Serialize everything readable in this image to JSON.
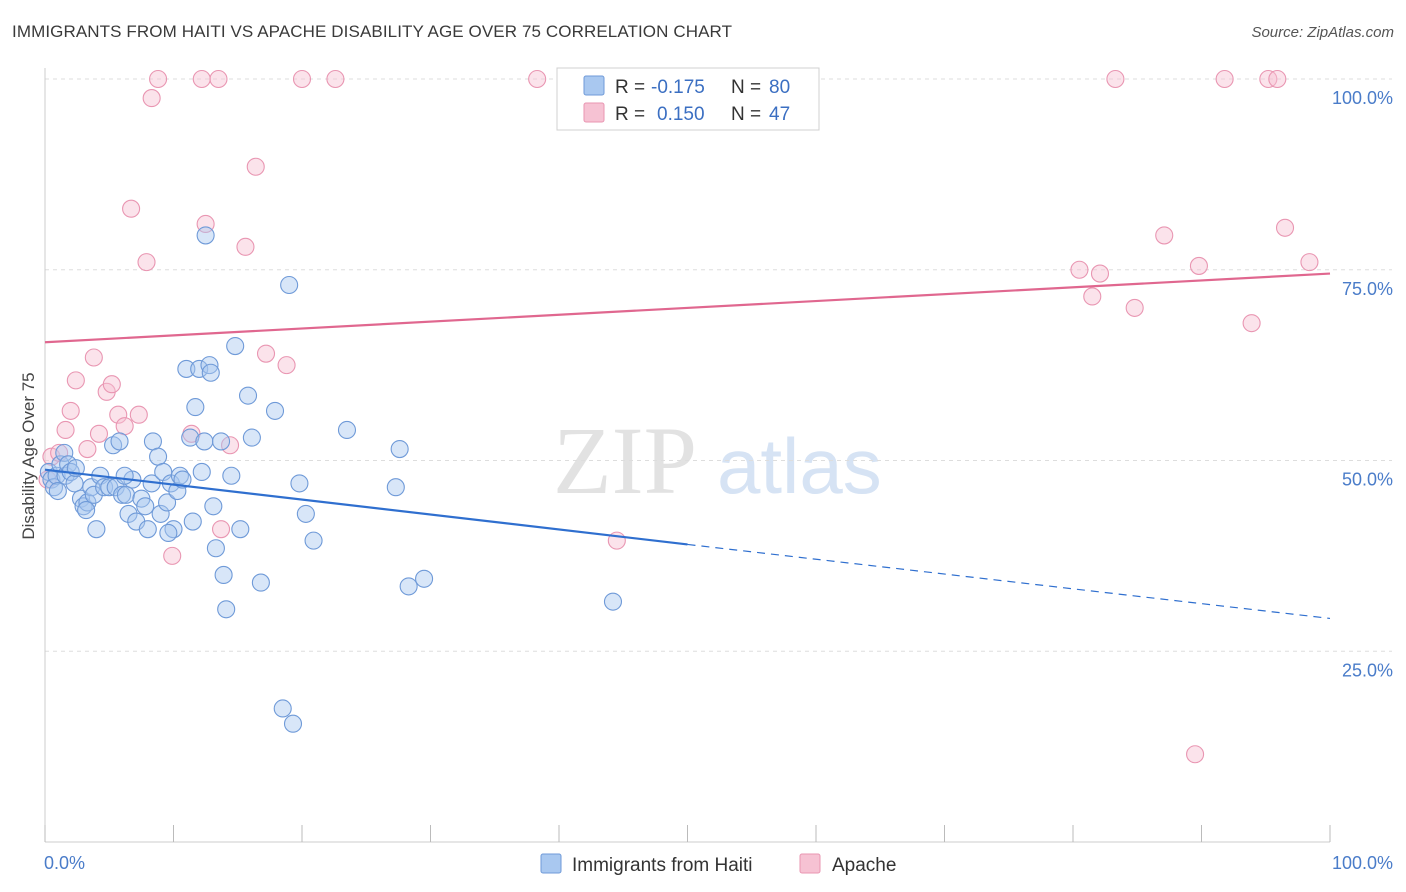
{
  "title": "IMMIGRANTS FROM HAITI VS APACHE DISABILITY AGE OVER 75 CORRELATION CHART",
  "source": "Source: ZipAtlas.com",
  "watermark": {
    "zip": "ZIP",
    "atlas": "atlas"
  },
  "colors": {
    "haiti_fill": "#a9c8f0",
    "haiti_stroke": "#6f9ad8",
    "haiti_line": "#2f6fcf",
    "apache_fill": "#f6c2d3",
    "apache_stroke": "#e996b2",
    "apache_line": "#e0678f",
    "tick_text": "#4a7cc9",
    "grid": "#dddddd"
  },
  "legend": {
    "rows": [
      {
        "r_label": "R =",
        "r_value": "-0.175",
        "n_label": "N =",
        "n_value": "80"
      },
      {
        "r_label": "R =",
        "r_value": "0.150",
        "n_label": "N =",
        "n_value": "47"
      }
    ]
  },
  "chart_data": {
    "type": "scatter",
    "title": "IMMIGRANTS FROM HAITI VS APACHE DISABILITY AGE OVER 75 CORRELATION CHART",
    "xlabel": "",
    "ylabel": "Disability Age Over 75",
    "xlim": [
      0,
      100
    ],
    "ylim": [
      0,
      100
    ],
    "x_tick_labels": [
      "0.0%",
      "100.0%"
    ],
    "y_ticks": [
      25,
      50,
      75,
      100
    ],
    "y_tick_labels": [
      "25.0%",
      "50.0%",
      "75.0%",
      "100.0%"
    ],
    "grid": "horizontal dashed",
    "legend_position": "top-center",
    "series": [
      {
        "name": "Immigrants from Haiti",
        "r": -0.175,
        "n": 80,
        "trend": {
          "x0": 0,
          "y0": 48.8,
          "x1": 50,
          "y1": 39.0,
          "x_dash_end": 100,
          "y_dash_end": 29.3
        },
        "points": [
          [
            0.3,
            48.5
          ],
          [
            0.5,
            47.5
          ],
          [
            0.7,
            46.5
          ],
          [
            0.9,
            48
          ],
          [
            1.2,
            49.5
          ],
          [
            1.5,
            51
          ],
          [
            1.6,
            48
          ],
          [
            1.8,
            49.5
          ],
          [
            2.0,
            48.5
          ],
          [
            2.3,
            47
          ],
          [
            2.4,
            49
          ],
          [
            2.8,
            45
          ],
          [
            3.0,
            44
          ],
          [
            3.3,
            44.5
          ],
          [
            3.6,
            46.5
          ],
          [
            3.8,
            45.5
          ],
          [
            4.0,
            41
          ],
          [
            4.3,
            48
          ],
          [
            4.6,
            46.5
          ],
          [
            5.0,
            46.5
          ],
          [
            5.3,
            52
          ],
          [
            5.5,
            46.5
          ],
          [
            5.8,
            52.5
          ],
          [
            6.0,
            45.5
          ],
          [
            6.3,
            45.5
          ],
          [
            6.5,
            43
          ],
          [
            6.8,
            47.5
          ],
          [
            7.1,
            42
          ],
          [
            7.5,
            45
          ],
          [
            7.8,
            44
          ],
          [
            8.0,
            41
          ],
          [
            8.3,
            47
          ],
          [
            8.4,
            52.5
          ],
          [
            8.8,
            50.5
          ],
          [
            9.0,
            43
          ],
          [
            9.2,
            48.5
          ],
          [
            9.5,
            44.5
          ],
          [
            9.8,
            47
          ],
          [
            10.0,
            41
          ],
          [
            10.3,
            46
          ],
          [
            10.5,
            48
          ],
          [
            10.7,
            47.5
          ],
          [
            11.0,
            62
          ],
          [
            11.3,
            53
          ],
          [
            11.5,
            42
          ],
          [
            11.7,
            57
          ],
          [
            12.0,
            62
          ],
          [
            12.2,
            48.5
          ],
          [
            12.4,
            52.5
          ],
          [
            12.5,
            79.5
          ],
          [
            12.8,
            62.5
          ],
          [
            13.1,
            44
          ],
          [
            13.3,
            38.5
          ],
          [
            13.7,
            52.5
          ],
          [
            13.9,
            35
          ],
          [
            14.1,
            30.5
          ],
          [
            14.5,
            48
          ],
          [
            14.8,
            65
          ],
          [
            15.2,
            41
          ],
          [
            15.8,
            58.5
          ],
          [
            16.1,
            53
          ],
          [
            16.8,
            34
          ],
          [
            17.9,
            56.5
          ],
          [
            18.5,
            17.5
          ],
          [
            19.0,
            73
          ],
          [
            19.3,
            15.5
          ],
          [
            19.8,
            47
          ],
          [
            20.3,
            43
          ],
          [
            20.9,
            39.5
          ],
          [
            23.5,
            54
          ],
          [
            27.3,
            46.5
          ],
          [
            27.6,
            51.5
          ],
          [
            28.3,
            33.5
          ],
          [
            29.5,
            34.5
          ],
          [
            44.2,
            31.5
          ],
          [
            1.0,
            46.0
          ],
          [
            6.2,
            48.0
          ],
          [
            9.6,
            40.5
          ],
          [
            3.2,
            43.5
          ],
          [
            12.9,
            61.5
          ]
        ]
      },
      {
        "name": "Apache",
        "r": 0.15,
        "n": 47,
        "trend": {
          "x0": 0,
          "y0": 65.5,
          "x1": 100,
          "y1": 74.5
        },
        "points": [
          [
            0.2,
            47.5
          ],
          [
            0.5,
            50.5
          ],
          [
            1.1,
            51
          ],
          [
            1.6,
            54
          ],
          [
            2.0,
            56.5
          ],
          [
            2.4,
            60.5
          ],
          [
            3.3,
            51.5
          ],
          [
            3.8,
            63.5
          ],
          [
            4.2,
            53.5
          ],
          [
            4.8,
            59
          ],
          [
            5.2,
            60
          ],
          [
            5.7,
            56
          ],
          [
            6.2,
            54.5
          ],
          [
            6.7,
            83
          ],
          [
            7.3,
            56
          ],
          [
            7.9,
            76
          ],
          [
            8.3,
            97.5
          ],
          [
            8.8,
            100
          ],
          [
            9.9,
            37.5
          ],
          [
            11.4,
            53.5
          ],
          [
            12.2,
            100
          ],
          [
            12.5,
            81
          ],
          [
            13.5,
            100
          ],
          [
            13.7,
            41
          ],
          [
            14.4,
            52
          ],
          [
            15.6,
            78
          ],
          [
            16.4,
            88.5
          ],
          [
            17.2,
            64
          ],
          [
            18.8,
            62.5
          ],
          [
            20.0,
            100
          ],
          [
            22.6,
            100
          ],
          [
            38.3,
            100
          ],
          [
            44.5,
            39.5
          ],
          [
            80.5,
            75
          ],
          [
            81.5,
            71.5
          ],
          [
            82.1,
            74.5
          ],
          [
            83.3,
            100
          ],
          [
            84.8,
            70
          ],
          [
            87.1,
            79.5
          ],
          [
            89.8,
            75.5
          ],
          [
            89.5,
            11.5
          ],
          [
            91.8,
            100
          ],
          [
            93.9,
            68
          ],
          [
            95.2,
            100
          ],
          [
            95.9,
            100
          ],
          [
            96.5,
            80.5
          ],
          [
            98.4,
            76
          ]
        ]
      }
    ]
  }
}
